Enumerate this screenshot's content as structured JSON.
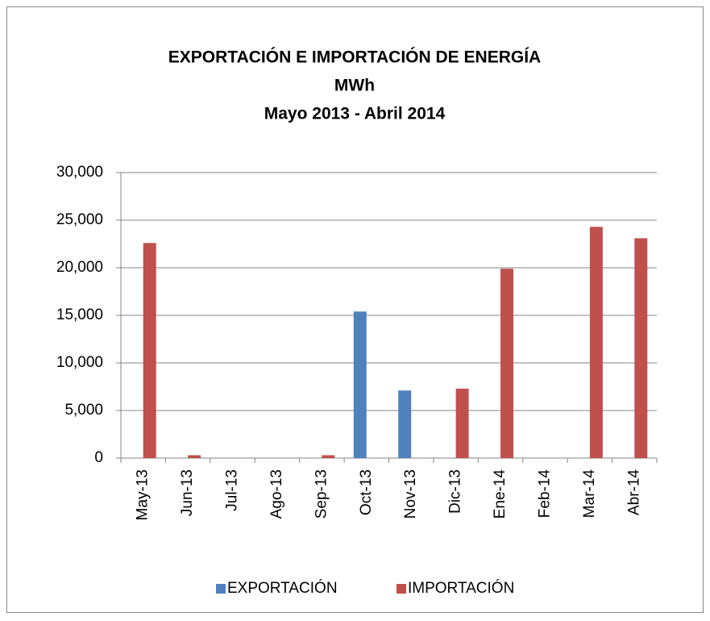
{
  "chart_data": {
    "type": "bar",
    "title_lines": [
      "EXPORTACIÓN E IMPORTACIÓN DE ENERGÍA",
      "MWh",
      "Mayo 2013 - Abril 2014"
    ],
    "categories": [
      "May-13",
      "Jun-13",
      "Jul-13",
      "Ago-13",
      "Sep-13",
      "Oct-13",
      "Nov-13",
      "Dic-13",
      "Ene-14",
      "Feb-14",
      "Mar-14",
      "Abr-14"
    ],
    "series": [
      {
        "name": "EXPORTACIÓN",
        "color": "#4f81bd",
        "values": [
          0,
          0,
          0,
          0,
          0,
          15400,
          7100,
          0,
          0,
          0,
          0,
          0
        ]
      },
      {
        "name": "IMPORTACIÓN",
        "color": "#c0504d",
        "values": [
          22600,
          300,
          0,
          0,
          300,
          0,
          0,
          7300,
          19900,
          0,
          24300,
          23100
        ]
      }
    ],
    "ylim": [
      0,
      30000
    ],
    "yticks": [
      0,
      {
        "value": 5000,
        "label": "5,000"
      },
      {
        "value": 10000,
        "label": "10,000"
      },
      {
        "value": 15000,
        "label": "15,000"
      },
      {
        "value": 20000,
        "label": "20,000"
      },
      {
        "value": 25000,
        "label": "25,000"
      },
      {
        "value": 30000,
        "label": "30,000"
      }
    ],
    "grid": true,
    "legend": "bottom"
  }
}
